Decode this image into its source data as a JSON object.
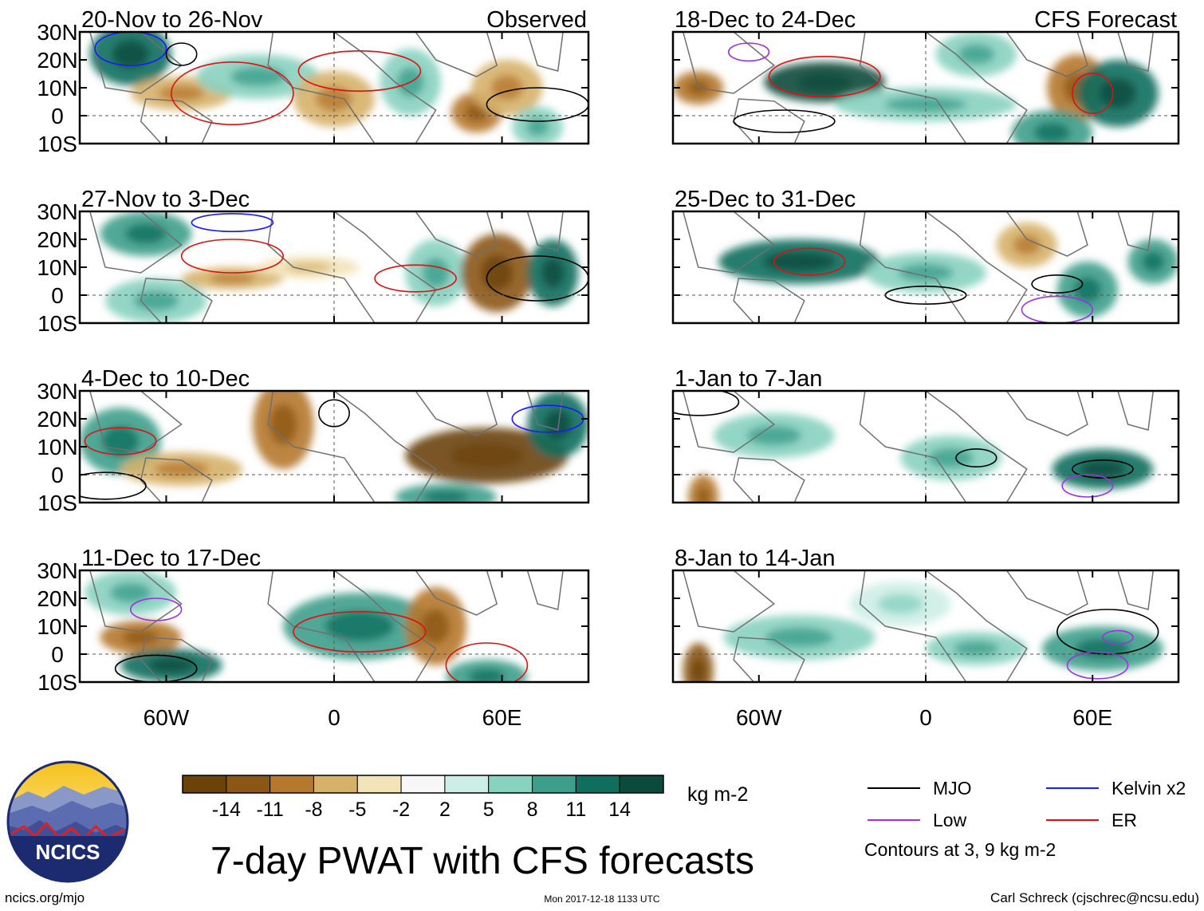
{
  "observed_label": "Observed",
  "forecast_label": "CFS Forecast",
  "panels_left": [
    {
      "title": "20-Nov to 26-Nov"
    },
    {
      "title": "27-Nov to 3-Dec"
    },
    {
      "title": "4-Dec to 10-Dec"
    },
    {
      "title": "11-Dec to 17-Dec"
    }
  ],
  "panels_right": [
    {
      "title": "18-Dec to 24-Dec"
    },
    {
      "title": "25-Dec to 31-Dec"
    },
    {
      "title": "1-Jan to 7-Jan"
    },
    {
      "title": "8-Jan to 14-Jan"
    }
  ],
  "lat_labels": [
    "30N",
    "20N",
    "10N",
    "0",
    "10S"
  ],
  "lon_labels": [
    "60W",
    "0",
    "60E"
  ],
  "colorbar": {
    "colors": [
      "#6b4208",
      "#8c5614",
      "#b5782c",
      "#d6b16a",
      "#f2e3b8",
      "#f7f7f7",
      "#cdeee6",
      "#88d2c0",
      "#3d9e8b",
      "#0f6e5e",
      "#0b4a3c"
    ],
    "ticks": [
      "-14",
      "-11",
      "-8",
      "-5",
      "-2",
      "2",
      "5",
      "8",
      "11",
      "14"
    ],
    "units": "kg m-2"
  },
  "main_title": "7-day PWAT with CFS forecasts",
  "legend": {
    "items": [
      {
        "label": "MJO",
        "color": "#000000"
      },
      {
        "label": "Kelvin x2",
        "color": "#1a1aff"
      },
      {
        "label": "Low",
        "color": "#a030e0"
      },
      {
        "label": "ER",
        "color": "#e01010"
      }
    ],
    "note": "Contours at 3, 9 kg m-2"
  },
  "logo_text": "NCICS",
  "footer": {
    "left": "ncics.org/mjo",
    "center": "Mon 2017-12-18 1133 UTC",
    "right": "Carl Schreck (cjschrec@ncsu.edu)"
  }
}
